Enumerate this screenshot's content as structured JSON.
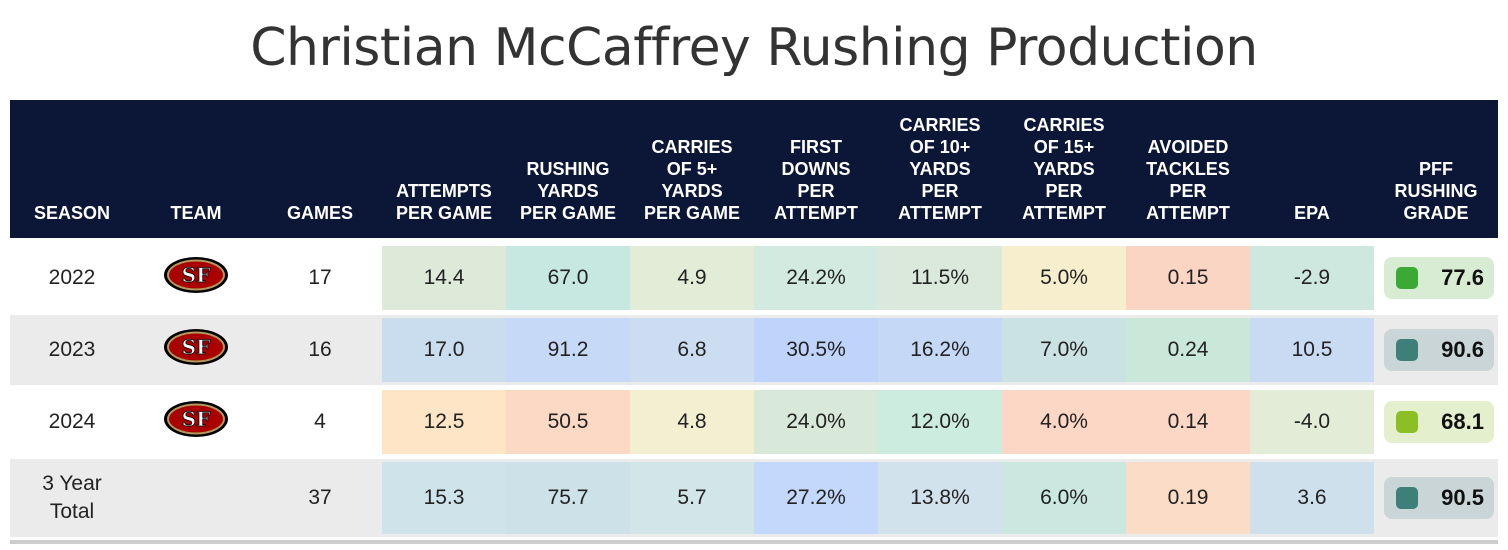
{
  "title": "Christian McCaffrey Rushing Production",
  "chart_data": {
    "type": "table",
    "title": "Christian McCaffrey Rushing Production",
    "columns": [
      [
        "SEASON"
      ],
      [
        "TEAM"
      ],
      [
        "GAMES"
      ],
      [
        "ATTEMPTS",
        "PER GAME"
      ],
      [
        "RUSHING",
        "YARDS",
        "PER GAME"
      ],
      [
        "CARRIES",
        "OF 5+",
        "YARDS",
        "PER GAME"
      ],
      [
        "FIRST",
        "DOWNS",
        "PER",
        "ATTEMPT"
      ],
      [
        "CARRIES",
        "OF 10+",
        "YARDS",
        "PER",
        "ATTEMPT"
      ],
      [
        "CARRIES",
        "OF 15+",
        "YARDS",
        "PER",
        "ATTEMPT"
      ],
      [
        "AVOIDED",
        "TACKLES",
        "PER",
        "ATTEMPT"
      ],
      [
        "EPA"
      ],
      [
        "PFF",
        "RUSHING",
        "GRADE"
      ]
    ],
    "rows": [
      {
        "season": "2022",
        "team": "SF",
        "games": "17",
        "stats": [
          "14.4",
          "67.0",
          "4.9",
          "24.2%",
          "11.5%",
          "5.0%",
          "0.15",
          "-2.9"
        ],
        "colors": [
          "#dde9d9",
          "#c6e8e0",
          "#e3ecd7",
          "#d2eadf",
          "#dbe9dc",
          "#f6eecd",
          "#fbd5c4",
          "#cfe8df"
        ],
        "grade": "77.6",
        "grade_color": "#3aaa35",
        "grade_bg": "#d8ecd3"
      },
      {
        "season": "2023",
        "team": "SF",
        "games": "16",
        "stats": [
          "17.0",
          "91.2",
          "6.8",
          "30.5%",
          "16.2%",
          "7.0%",
          "0.24",
          "10.5"
        ],
        "colors": [
          "#c9ddef",
          "#c6d9f6",
          "#ccddf2",
          "#c0d4fb",
          "#c5d9f6",
          "#cbe2e2",
          "#c9e8da",
          "#c8dbf2"
        ],
        "grade": "90.6",
        "grade_color": "#3e7f79",
        "grade_bg": "#c9d5d6"
      },
      {
        "season": "2024",
        "team": "SF",
        "games": "4",
        "stats": [
          "12.5",
          "50.5",
          "4.8",
          "24.0%",
          "12.0%",
          "4.0%",
          "0.14",
          "-4.0"
        ],
        "colors": [
          "#fde5c5",
          "#fbd9c4",
          "#f3f0d2",
          "#d9e9d9",
          "#cdece0",
          "#fcd7c5",
          "#fcd7c5",
          "#e3ecd7"
        ],
        "grade": "68.1",
        "grade_color": "#8cbf26",
        "grade_bg": "#e3efcd"
      },
      {
        "season": "3 Year Total",
        "season_lines": [
          "3 Year",
          "Total"
        ],
        "team": "",
        "games": "37",
        "stats": [
          "15.3",
          "75.7",
          "5.7",
          "27.2%",
          "13.8%",
          "6.0%",
          "0.19",
          "3.6"
        ],
        "colors": [
          "#cee3ea",
          "#cce2e8",
          "#d2e5e8",
          "#c3d8fb",
          "#d1e2ec",
          "#cbe8e0",
          "#fbdcc6",
          "#cfe0ed"
        ],
        "grade": "90.5",
        "grade_color": "#3e7f79",
        "grade_bg": "#c9d5d6"
      }
    ]
  }
}
